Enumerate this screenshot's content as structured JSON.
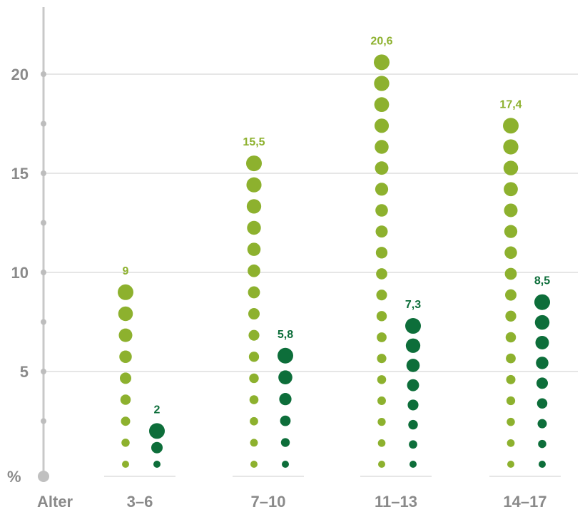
{
  "chart_data": {
    "type": "scatter",
    "title": "",
    "xlabel": "Alter",
    "ylabel": "%",
    "ylim": [
      0,
      21.5
    ],
    "yticks": [
      5,
      10,
      15,
      20
    ],
    "ytick_labels": [
      "5",
      "10",
      "15",
      "20"
    ],
    "grid": true,
    "categories": [
      "3–6",
      "7–10",
      "11–13",
      "14–17"
    ],
    "series": [
      {
        "color": "#8db12e",
        "values": [
          9,
          15.5,
          20.6,
          17.4
        ],
        "labels": [
          "9",
          "15,5",
          "20,6",
          "17,4"
        ]
      },
      {
        "color": "#0d6e3a",
        "values": [
          2,
          5.8,
          7.3,
          8.5
        ],
        "labels": [
          "2",
          "5,8",
          "7,3",
          "8,5"
        ]
      }
    ]
  }
}
